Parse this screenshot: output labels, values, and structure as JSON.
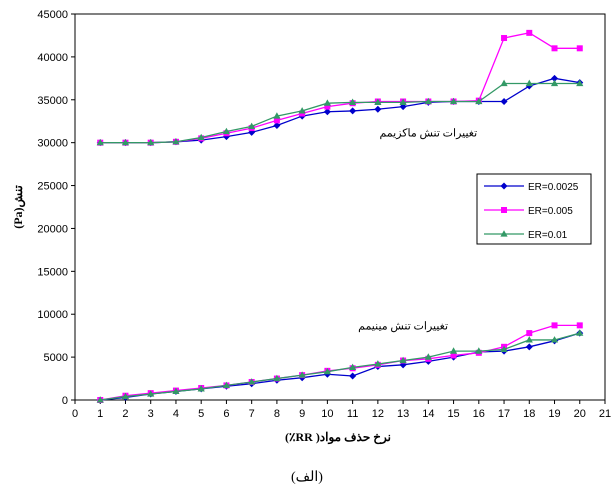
{
  "chart_data": {
    "type": "line",
    "title": "",
    "xlabel": "نرخ حذف مواد( RR٪)",
    "ylabel": "تنش(Pa)",
    "caption": "(الف)",
    "xlim": [
      0,
      21
    ],
    "ylim": [
      0,
      45000
    ],
    "x_ticks": [
      0,
      1,
      2,
      3,
      4,
      5,
      6,
      7,
      8,
      9,
      10,
      11,
      12,
      13,
      14,
      15,
      16,
      17,
      18,
      19,
      20,
      21
    ],
    "y_ticks": [
      0,
      5000,
      10000,
      15000,
      20000,
      25000,
      30000,
      35000,
      40000,
      45000
    ],
    "grid": false,
    "legend_position": "right",
    "annotations": [
      {
        "text": "تغییرات تنش ماکزیمم",
        "x": 14,
        "y": 30000
      },
      {
        "text": "تغییرات تنش مینیمم",
        "x": 13,
        "y": 7500
      }
    ],
    "x": [
      1,
      2,
      3,
      4,
      5,
      6,
      7,
      8,
      9,
      10,
      11,
      12,
      13,
      14,
      15,
      16,
      17,
      18,
      19,
      20
    ],
    "series": [
      {
        "name": "ER=0.0025",
        "color": "#0000cc",
        "marker": "diamond",
        "groups": [
          [
            30000,
            30000,
            30000,
            30100,
            30300,
            30700,
            31200,
            32000,
            33100,
            33600,
            33700,
            33900,
            34200,
            34700,
            34800,
            34800,
            34800,
            36600,
            37500,
            37000
          ],
          [
            0,
            300,
            700,
            1000,
            1300,
            1600,
            1900,
            2300,
            2600,
            3000,
            2800,
            3900,
            4100,
            4500,
            5000,
            5600,
            5700,
            6200,
            6900,
            7800
          ]
        ]
      },
      {
        "name": "ER=0.005",
        "color": "#ff00ff",
        "marker": "square",
        "groups": [
          [
            30000,
            30000,
            30000,
            30100,
            30500,
            31100,
            31700,
            32600,
            33400,
            34200,
            34600,
            34800,
            34800,
            34800,
            34800,
            34900,
            42200,
            42800,
            41000,
            41000
          ],
          [
            0,
            500,
            800,
            1100,
            1400,
            1700,
            2100,
            2500,
            2900,
            3400,
            3700,
            4100,
            4600,
            4800,
            5200,
            5500,
            6200,
            7800,
            8700,
            8700
          ]
        ]
      },
      {
        "name": "ER=0.01",
        "color": "#339966",
        "marker": "triangle",
        "groups": [
          [
            30000,
            30000,
            30000,
            30100,
            30600,
            31300,
            31900,
            33100,
            33700,
            34600,
            34700,
            34700,
            34700,
            34800,
            34800,
            34800,
            36900,
            36900,
            36900,
            36900
          ],
          [
            0,
            400,
            700,
            1000,
            1300,
            1700,
            2100,
            2500,
            2900,
            3300,
            3800,
            4200,
            4600,
            5000,
            5700,
            5700,
            5900,
            7000,
            7000,
            7800
          ]
        ]
      }
    ]
  }
}
